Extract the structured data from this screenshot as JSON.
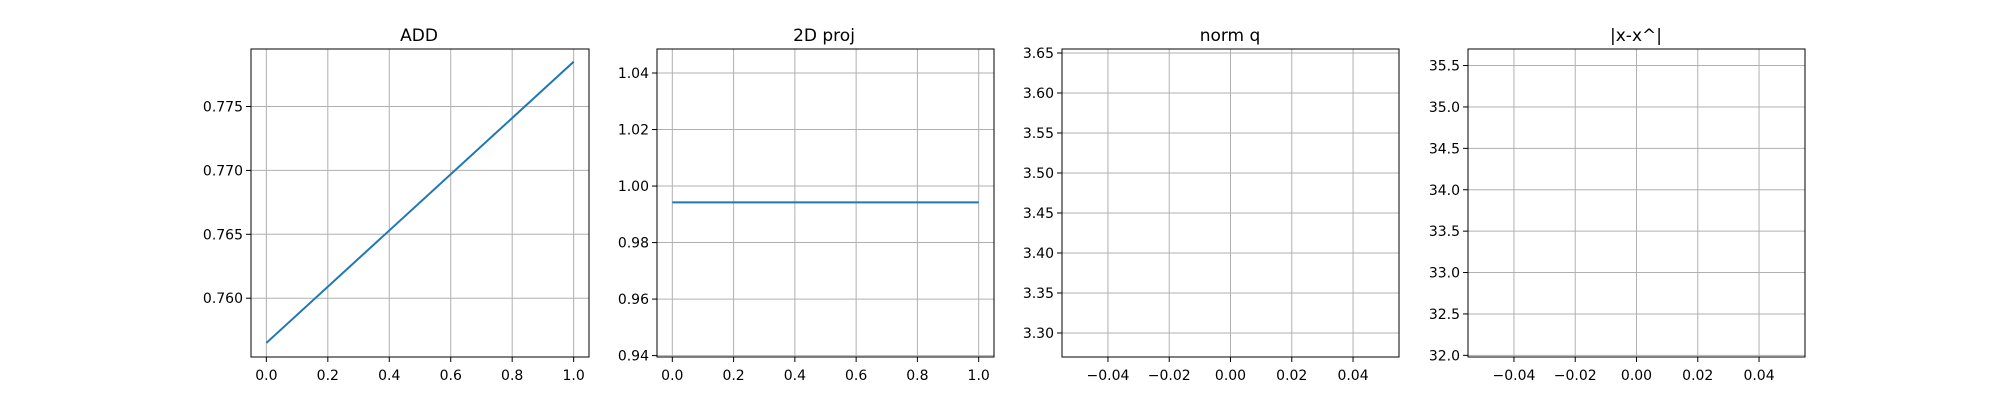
{
  "chart_data": [
    {
      "type": "line",
      "title": "ADD",
      "xlabel": "",
      "ylabel": "",
      "xlim": [
        -0.05,
        1.05
      ],
      "ylim": [
        0.7554,
        0.7795
      ],
      "xticks": [
        "0.0",
        "0.2",
        "0.4",
        "0.6",
        "0.8",
        "1.0"
      ],
      "yticks": [
        "0.760",
        "0.765",
        "0.770",
        "0.775"
      ],
      "grid": true,
      "series": [
        {
          "x": [
            0,
            1
          ],
          "y": [
            0.7565,
            0.7785
          ],
          "color": "#1f77b4"
        }
      ]
    },
    {
      "type": "line",
      "title": "2D proj",
      "xlabel": "",
      "ylabel": "",
      "xlim": [
        -0.05,
        1.05
      ],
      "ylim": [
        0.9395,
        1.0485
      ],
      "xticks": [
        "0.0",
        "0.2",
        "0.4",
        "0.6",
        "0.8",
        "1.0"
      ],
      "yticks": [
        "0.94",
        "0.96",
        "0.98",
        "1.00",
        "1.02",
        "1.04"
      ],
      "grid": true,
      "series": [
        {
          "x": [
            0,
            1
          ],
          "y": [
            0.9942,
            0.9942
          ],
          "color": "#1f77b4"
        }
      ]
    },
    {
      "type": "line",
      "title": "norm q",
      "xlabel": "",
      "ylabel": "",
      "xlim": [
        -0.055,
        0.055
      ],
      "ylim": [
        3.27,
        3.655
      ],
      "xticks": [
        "−0.04",
        "−0.02",
        "0.00",
        "0.02",
        "0.04"
      ],
      "yticks": [
        "3.30",
        "3.35",
        "3.40",
        "3.45",
        "3.50",
        "3.55",
        "3.60",
        "3.65"
      ],
      "grid": true,
      "series": []
    },
    {
      "type": "line",
      "title": "|x-x^|",
      "xlabel": "",
      "ylabel": "",
      "xlim": [
        -0.055,
        0.055
      ],
      "ylim": [
        31.98,
        35.7
      ],
      "xticks": [
        "−0.04",
        "−0.02",
        "0.00",
        "0.02",
        "0.04"
      ],
      "yticks": [
        "32.0",
        "32.5",
        "33.0",
        "33.5",
        "34.0",
        "34.5",
        "35.0",
        "35.5"
      ],
      "grid": true,
      "series": []
    }
  ]
}
